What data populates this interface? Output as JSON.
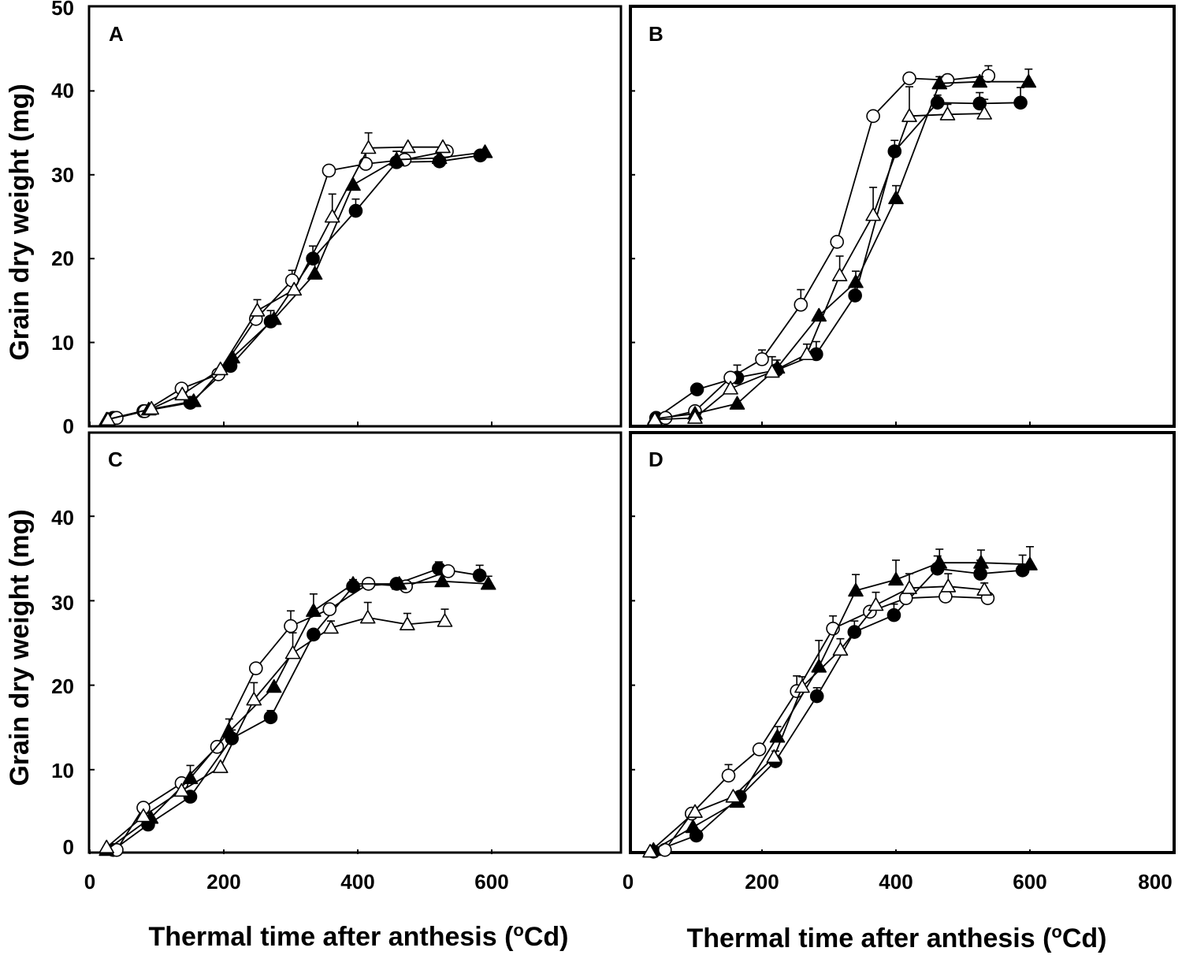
{
  "figure": {
    "ylabel": "Grain dry weight (mg)",
    "xlabel_main": "Thermal time after anthesis (",
    "xlabel_sup": "o",
    "xlabel_unit": "Cd)",
    "x_ticks_left": [
      "0",
      "200",
      "400",
      "600"
    ],
    "x_ticks_right": [
      "0",
      "200",
      "400",
      "600",
      "800"
    ],
    "y_ticks_top": [
      "0",
      "10",
      "20",
      "30",
      "40",
      "50"
    ],
    "y_ticks_bottom": [
      "0",
      "10",
      "20",
      "30",
      "40"
    ]
  },
  "chart_data": [
    {
      "panel": "A",
      "type": "line",
      "xlim": [
        0,
        800
      ],
      "ylim": [
        0,
        50
      ],
      "series": [
        {
          "marker": "filled-circle",
          "x": [
            35,
            80,
            150,
            210,
            270,
            333,
            397,
            458,
            522,
            583
          ],
          "y": [
            1.0,
            1.8,
            2.8,
            7.2,
            12.5,
            20.0,
            25.7,
            31.5,
            31.6,
            32.3
          ],
          "err": [
            0,
            0,
            0,
            0,
            1.3,
            1.5,
            1.4,
            1.3,
            1.2,
            0
          ]
        },
        {
          "marker": "open-circle",
          "x": [
            40,
            82,
            137,
            192,
            248,
            302,
            357,
            412,
            470,
            533
          ],
          "y": [
            1.0,
            1.8,
            4.5,
            6.2,
            12.8,
            17.4,
            30.5,
            31.3,
            31.8,
            32.8
          ],
          "err": [
            0,
            0,
            0,
            0,
            0,
            1.2,
            0,
            1.5,
            0,
            0
          ]
        },
        {
          "marker": "filled-triangle",
          "x": [
            25,
            88,
            155,
            213,
            275,
            336,
            393,
            458,
            522,
            590
          ],
          "y": [
            0.8,
            2.0,
            3.0,
            8.2,
            12.8,
            18.2,
            28.8,
            31.8,
            32.0,
            32.7
          ],
          "err": [
            0,
            0,
            0,
            0,
            0,
            1.3,
            0,
            1.0,
            0,
            0
          ]
        },
        {
          "marker": "open-triangle",
          "x": [
            27,
            92,
            138,
            195,
            250,
            305,
            362,
            416,
            475,
            527
          ],
          "y": [
            0.8,
            2.1,
            3.8,
            6.8,
            13.8,
            16.3,
            25.0,
            33.2,
            33.3,
            33.3
          ],
          "err": [
            0,
            0,
            0,
            0,
            1.3,
            0,
            2.7,
            1.8,
            0,
            0
          ]
        }
      ]
    },
    {
      "panel": "B",
      "type": "line",
      "xlim": [
        0,
        800
      ],
      "ylim": [
        0,
        50
      ],
      "series": [
        {
          "marker": "filled-circle",
          "x": [
            42,
            103,
            163,
            222,
            281,
            339,
            398,
            462,
            525,
            586
          ],
          "y": [
            1.0,
            4.4,
            5.8,
            6.7,
            8.6,
            15.6,
            32.8,
            38.6,
            38.5,
            38.6
          ],
          "err": [
            0,
            0,
            1.5,
            1.2,
            1.5,
            1.2,
            1.3,
            0.9,
            1.3,
            1.8
          ]
        },
        {
          "marker": "open-circle",
          "x": [
            56,
            100,
            153,
            200,
            258,
            312,
            366,
            420,
            477,
            538
          ],
          "y": [
            1.0,
            1.8,
            5.8,
            8.0,
            14.5,
            22.0,
            37.0,
            41.5,
            41.3,
            41.8
          ],
          "err": [
            0,
            0,
            0,
            1.1,
            1.8,
            0,
            0,
            0,
            0,
            1.2
          ]
        },
        {
          "marker": "filled-triangle",
          "x": [
            40,
            100,
            163,
            223,
            285,
            340,
            400,
            465,
            525,
            598
          ],
          "y": [
            0.9,
            1.5,
            2.7,
            7.0,
            13.2,
            17.2,
            27.2,
            40.9,
            41.1,
            41.1
          ],
          "err": [
            0,
            0,
            0,
            0,
            0,
            1.3,
            1.5,
            0.8,
            0.6,
            1.5
          ]
        },
        {
          "marker": "open-triangle",
          "x": [
            40,
            100,
            153,
            215,
            267,
            316,
            366,
            420,
            477,
            532
          ],
          "y": [
            0.8,
            1.0,
            4.5,
            6.5,
            8.6,
            18.0,
            25.2,
            37.0,
            37.2,
            37.3
          ],
          "err": [
            0,
            0,
            0,
            1.8,
            1.2,
            2.3,
            3.3,
            3.5,
            1.2,
            1.7
          ]
        }
      ]
    },
    {
      "panel": "C",
      "type": "line",
      "xlim": [
        0,
        800
      ],
      "ylim": [
        0,
        50
      ],
      "series": [
        {
          "marker": "filled-circle",
          "x": [
            35,
            87,
            150,
            212,
            270,
            334,
            393,
            458,
            521,
            582
          ],
          "y": [
            0.5,
            3.5,
            6.8,
            13.7,
            16.2,
            26.0,
            31.7,
            32.0,
            33.8,
            33.0
          ],
          "err": [
            0,
            0,
            0,
            1.0,
            0.8,
            0,
            0.8,
            0,
            0.8,
            1.2
          ]
        },
        {
          "marker": "open-circle",
          "x": [
            40,
            80,
            137,
            190,
            248,
            300,
            358,
            416,
            472,
            535
          ],
          "y": [
            0.5,
            5.5,
            8.4,
            12.7,
            22.0,
            27.0,
            29.0,
            32.0,
            31.7,
            33.5
          ],
          "err": [
            0,
            0,
            0,
            0,
            0,
            1.8,
            0,
            0,
            0,
            0
          ]
        },
        {
          "marker": "filled-triangle",
          "x": [
            25,
            91,
            150,
            208,
            275,
            334,
            393,
            462,
            526,
            595
          ],
          "y": [
            0.5,
            4.3,
            9.0,
            14.5,
            19.8,
            28.8,
            32.0,
            32.0,
            32.3,
            32.0
          ],
          "err": [
            0,
            0,
            1.5,
            1.5,
            0,
            2.0,
            0,
            0,
            0,
            0.9
          ]
        },
        {
          "marker": "open-triangle",
          "x": [
            25,
            80,
            137,
            195,
            245,
            303,
            360,
            415,
            474,
            530
          ],
          "y": [
            0.8,
            4.5,
            7.5,
            10.3,
            18.3,
            23.8,
            26.8,
            28.0,
            27.2,
            27.6
          ],
          "err": [
            0,
            0,
            0,
            0,
            2.0,
            2.4,
            0.8,
            1.8,
            1.3,
            1.4
          ]
        }
      ]
    },
    {
      "panel": "D",
      "type": "line",
      "xlim": [
        0,
        800
      ],
      "ylim": [
        0,
        50
      ],
      "series": [
        {
          "marker": "filled-circle",
          "x": [
            38,
            102,
            167,
            220,
            282,
            338,
            397,
            462,
            526,
            589
          ],
          "y": [
            0.3,
            2.2,
            6.8,
            11.0,
            18.7,
            26.3,
            28.3,
            33.8,
            33.2,
            33.6
          ],
          "err": [
            0,
            0,
            0,
            1.2,
            1.0,
            1.3,
            1.3,
            1.5,
            1.6,
            1.8
          ]
        },
        {
          "marker": "open-circle",
          "x": [
            55,
            95,
            150,
            196,
            252,
            306,
            361,
            415,
            474,
            537
          ],
          "y": [
            0.5,
            4.8,
            9.3,
            12.4,
            19.3,
            26.7,
            28.7,
            30.3,
            30.5,
            30.3
          ],
          "err": [
            0,
            0,
            1.3,
            0,
            1.8,
            1.5,
            0,
            0,
            0,
            0
          ]
        },
        {
          "marker": "filled-triangle",
          "x": [
            38,
            97,
            163,
            223,
            285,
            340,
            400,
            465,
            527,
            600
          ],
          "y": [
            0.5,
            3.2,
            6.2,
            13.9,
            22.2,
            31.2,
            32.5,
            34.5,
            34.5,
            34.3
          ],
          "err": [
            0,
            0,
            0,
            1.2,
            3.1,
            1.9,
            2.3,
            1.6,
            1.5,
            2.1
          ]
        },
        {
          "marker": "open-triangle",
          "x": [
            33,
            100,
            157,
            218,
            260,
            317,
            370,
            420,
            478,
            532
          ],
          "y": [
            0.3,
            5.0,
            6.8,
            11.5,
            19.8,
            24.2,
            29.5,
            31.5,
            31.7,
            31.3
          ],
          "err": [
            0,
            0,
            0,
            0,
            1.2,
            1.3,
            1.5,
            1.7,
            1.5,
            0.8
          ]
        }
      ]
    }
  ]
}
